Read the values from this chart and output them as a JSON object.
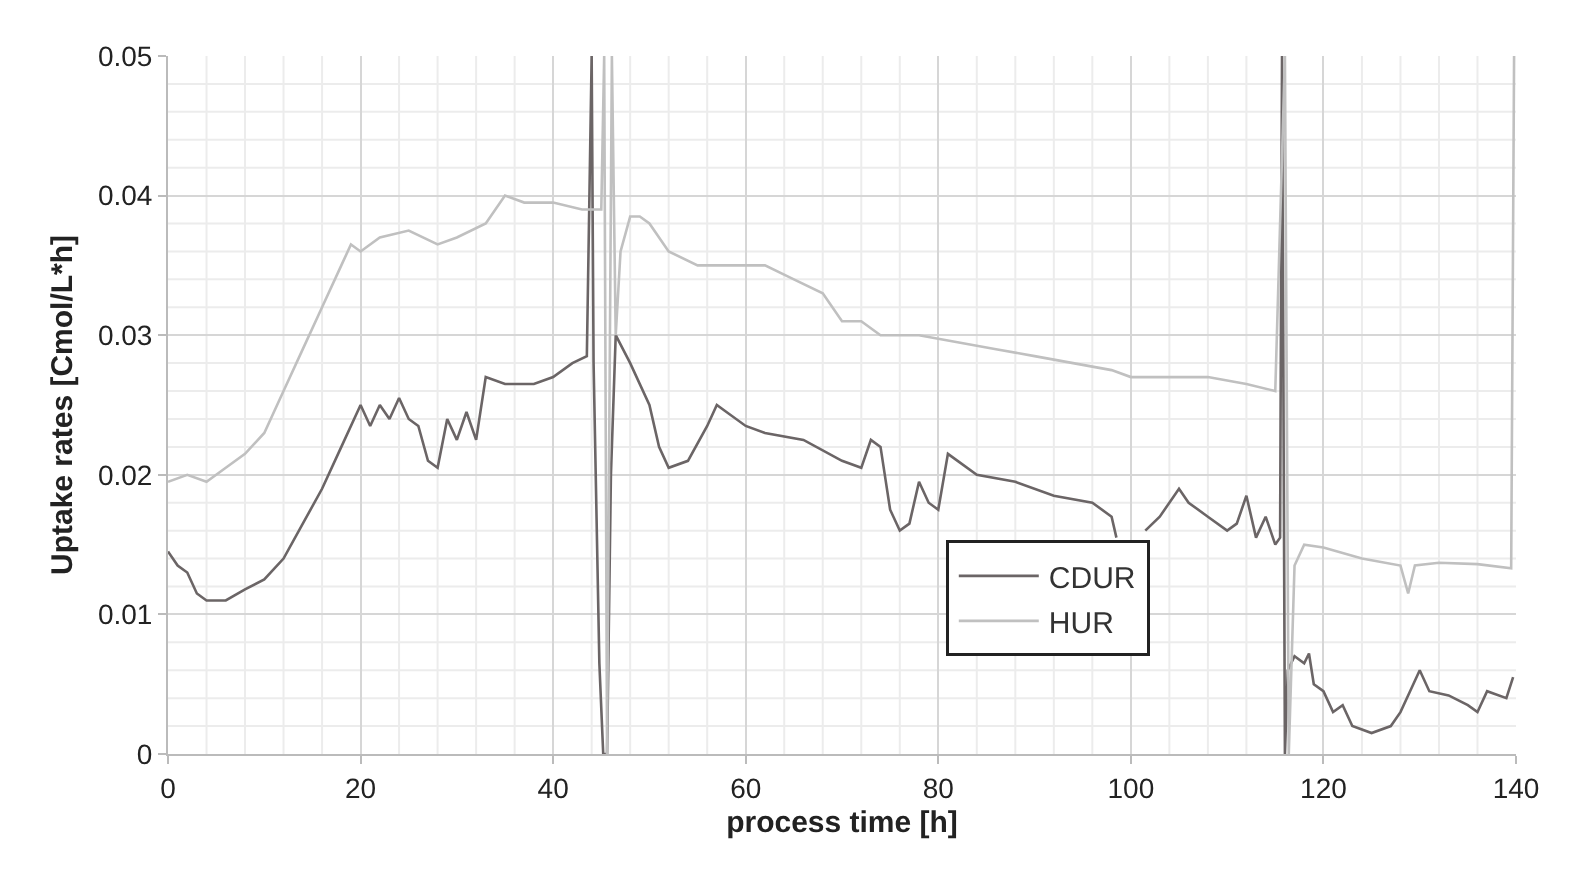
{
  "chart_data": {
    "type": "line",
    "xlabel": "process time [h]",
    "ylabel": "Uptake rates [Cmol/L*h]",
    "xlim": [
      0,
      140
    ],
    "ylim": [
      0,
      0.05
    ],
    "xticks": [
      0,
      {
        "value": 4,
        "label": null
      },
      {
        "value": 8,
        "label": null
      },
      {
        "value": 12,
        "label": null
      },
      {
        "value": 16,
        "label": null
      },
      20,
      {
        "value": 24,
        "label": null
      },
      {
        "value": 28,
        "label": null
      },
      {
        "value": 32,
        "label": null
      },
      {
        "value": 36,
        "label": null
      },
      40,
      {
        "value": 44,
        "label": null
      },
      {
        "value": 48,
        "label": null
      },
      {
        "value": 52,
        "label": null
      },
      {
        "value": 56,
        "label": null
      },
      60,
      {
        "value": 64,
        "label": null
      },
      {
        "value": 68,
        "label": null
      },
      {
        "value": 72,
        "label": null
      },
      {
        "value": 76,
        "label": null
      },
      80,
      {
        "value": 84,
        "label": null
      },
      {
        "value": 88,
        "label": null
      },
      {
        "value": 92,
        "label": null
      },
      {
        "value": 96,
        "label": null
      },
      100,
      {
        "value": 104,
        "label": null
      },
      {
        "value": 108,
        "label": null
      },
      {
        "value": 112,
        "label": null
      },
      {
        "value": 116,
        "label": null
      },
      120,
      {
        "value": 124,
        "label": null
      },
      {
        "value": 128,
        "label": null
      },
      {
        "value": 132,
        "label": null
      },
      {
        "value": 136,
        "label": null
      },
      140
    ],
    "yticks": [
      0,
      {
        "value": 0.002,
        "label": null
      },
      {
        "value": 0.004,
        "label": null
      },
      {
        "value": 0.006,
        "label": null
      },
      {
        "value": 0.008,
        "label": null
      },
      0.01,
      {
        "value": 0.012,
        "label": null
      },
      {
        "value": 0.014,
        "label": null
      },
      {
        "value": 0.016,
        "label": null
      },
      {
        "value": 0.018,
        "label": null
      },
      0.02,
      {
        "value": 0.022,
        "label": null
      },
      {
        "value": 0.024,
        "label": null
      },
      {
        "value": 0.026,
        "label": null
      },
      {
        "value": 0.028,
        "label": null
      },
      0.03,
      {
        "value": 0.032,
        "label": null
      },
      {
        "value": 0.034,
        "label": null
      },
      {
        "value": 0.036,
        "label": null
      },
      {
        "value": 0.038,
        "label": null
      },
      0.04,
      {
        "value": 0.042,
        "label": null
      },
      {
        "value": 0.044,
        "label": null
      },
      {
        "value": 0.046,
        "label": null
      },
      {
        "value": 0.048,
        "label": null
      },
      0.05
    ],
    "grid": true,
    "legend": "bottom right",
    "marker": "none",
    "line_style": "solid",
    "series": [
      {
        "name": "CDUR",
        "color": "#6b6566",
        "x": [
          0,
          1,
          2,
          3,
          4,
          6,
          8,
          10,
          12,
          14,
          16,
          18,
          20,
          21,
          22,
          23,
          24,
          25,
          26,
          27,
          28,
          29,
          30,
          31,
          32,
          33,
          35,
          38,
          40,
          42,
          43.5,
          44,
          44.2,
          44.8,
          45.2,
          45.6,
          46,
          46.5,
          48,
          50,
          51,
          52,
          54,
          56,
          57,
          58,
          60,
          62,
          66,
          70,
          72,
          73,
          74,
          75,
          76,
          77,
          78,
          79,
          80,
          81,
          84,
          88,
          92,
          96,
          98,
          98.5,
          100,
          101.5,
          103,
          105,
          106,
          108,
          110,
          111,
          112,
          113,
          114,
          115,
          115.5,
          115.7,
          116,
          116.3,
          117,
          118,
          118.5,
          119,
          120,
          121,
          122,
          123,
          125,
          127,
          128,
          129,
          130,
          131,
          133,
          135,
          136,
          137,
          139,
          139.7
        ],
        "values": [
          0.0145,
          0.0135,
          0.013,
          0.0115,
          0.011,
          0.011,
          0.0118,
          0.0125,
          0.014,
          0.0165,
          0.019,
          0.022,
          0.025,
          0.0235,
          0.025,
          0.024,
          0.0255,
          0.024,
          0.0235,
          0.021,
          0.0205,
          0.024,
          0.0225,
          0.0245,
          0.0225,
          0.027,
          0.0265,
          0.0265,
          0.027,
          0.028,
          0.0285,
          0.05,
          0.028,
          0.0065,
          0,
          0,
          0.02,
          0.03,
          0.028,
          0.025,
          0.022,
          0.0205,
          0.021,
          0.0235,
          0.025,
          0.0245,
          0.0235,
          0.023,
          0.0225,
          0.021,
          0.0205,
          0.0225,
          0.022,
          0.0175,
          0.016,
          0.0165,
          0.0195,
          0.018,
          0.0175,
          0.0215,
          0.02,
          0.0195,
          0.0185,
          0.018,
          0.017,
          0.0155,
          null,
          0.016,
          0.017,
          0.019,
          0.018,
          0.017,
          0.016,
          0.0165,
          0.0185,
          0.0155,
          0.017,
          0.015,
          0.0155,
          0.05,
          0,
          0.006,
          0.007,
          0.0065,
          0.0072,
          0.005,
          0.0045,
          0.003,
          0.0035,
          0.002,
          0.0015,
          0.002,
          0.003,
          0.0045,
          0.006,
          0.0045,
          0.0042,
          0.0035,
          0.003,
          0.0045,
          0.004,
          0.0055
        ]
      },
      {
        "name": "HUR",
        "color": "#c0c0c0",
        "x": [
          0,
          2,
          4,
          6,
          8,
          10,
          12,
          14,
          16,
          18,
          19,
          20,
          22,
          25,
          28,
          30,
          33,
          35,
          37,
          40,
          43,
          45,
          45.3,
          45.6,
          46.1,
          46.5,
          47,
          48,
          49,
          50,
          52,
          55,
          58,
          62,
          65,
          68,
          70,
          72,
          74,
          78,
          82,
          86,
          90,
          94,
          98,
          100,
          104,
          108,
          112,
          115,
          116,
          116.4,
          117,
          118,
          120,
          124,
          128,
          128.8,
          129.5,
          132,
          136,
          139.5,
          139.8
        ],
        "values": [
          0.0195,
          0.02,
          0.0195,
          0.0205,
          0.0215,
          0.023,
          0.026,
          0.029,
          0.032,
          0.035,
          0.0365,
          0.036,
          0.037,
          0.0375,
          0.0365,
          0.037,
          0.038,
          0.04,
          0.0395,
          0.0395,
          0.039,
          0.039,
          0.05,
          0,
          0.05,
          0.03,
          0.036,
          0.0385,
          0.0385,
          0.038,
          0.036,
          0.035,
          0.035,
          0.035,
          0.034,
          0.033,
          0.031,
          0.031,
          0.03,
          0.03,
          0.0295,
          0.029,
          0.0285,
          0.028,
          0.0275,
          0.027,
          0.027,
          0.027,
          0.0265,
          0.026,
          0.05,
          0,
          0.0135,
          0.015,
          0.0148,
          0.014,
          0.0135,
          0.0115,
          0.0135,
          0.0137,
          0.0136,
          0.0133,
          0.05
        ]
      }
    ]
  }
}
